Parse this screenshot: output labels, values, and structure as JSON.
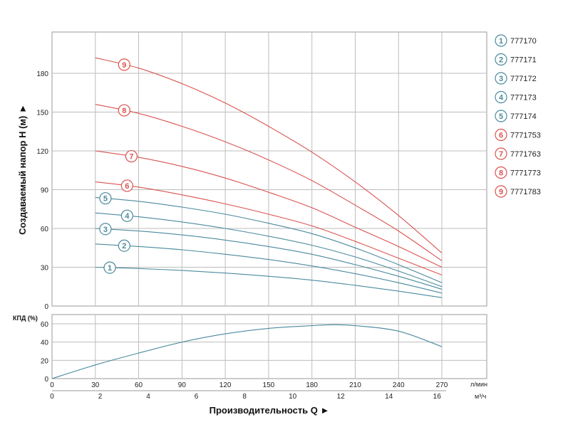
{
  "chart_data": [
    {
      "type": "line",
      "title": "",
      "ylabel": "Создаваемый напор H (м) ►",
      "xlabel": "",
      "xlim": [
        0,
        270
      ],
      "ylim": [
        0,
        200
      ],
      "x_ticks": [
        0,
        30,
        60,
        90,
        120,
        150,
        180,
        210,
        240,
        270
      ],
      "y_ticks": [
        0,
        30,
        60,
        90,
        120,
        150,
        180
      ],
      "grid": true,
      "legend": "right",
      "colors": {
        "blue": "#4a8a9e",
        "red": "#d9534f"
      },
      "series": [
        {
          "name": "777170",
          "marker": "1",
          "color": "#4a8a9e",
          "marker_x": 40,
          "x": [
            30,
            60,
            90,
            120,
            150,
            180,
            210,
            240,
            270
          ],
          "y": [
            30,
            29,
            27.5,
            25.5,
            23,
            20,
            16,
            11.5,
            6.5
          ]
        },
        {
          "name": "777171",
          "marker": "2",
          "color": "#4a8a9e",
          "marker_x": 50,
          "x": [
            30,
            60,
            90,
            120,
            150,
            180,
            210,
            240,
            270
          ],
          "y": [
            48,
            46,
            43.5,
            40,
            36,
            31,
            25,
            18,
            10
          ]
        },
        {
          "name": "777172",
          "marker": "3",
          "color": "#4a8a9e",
          "marker_x": 37,
          "x": [
            30,
            60,
            90,
            120,
            150,
            180,
            210,
            240,
            270
          ],
          "y": [
            60,
            58,
            55,
            51,
            46,
            40,
            32,
            23,
            13
          ]
        },
        {
          "name": "777173",
          "marker": "4",
          "color": "#4a8a9e",
          "marker_x": 52,
          "x": [
            30,
            60,
            90,
            120,
            150,
            180,
            210,
            240,
            270
          ],
          "y": [
            72,
            69,
            65,
            60,
            54,
            47,
            38,
            27,
            15
          ]
        },
        {
          "name": "777174",
          "marker": "5",
          "color": "#4a8a9e",
          "marker_x": 37,
          "x": [
            30,
            60,
            90,
            120,
            150,
            180,
            210,
            240,
            270
          ],
          "y": [
            84,
            81,
            76.5,
            71,
            64,
            56,
            45,
            32,
            18
          ]
        },
        {
          "name": "7771753",
          "marker": "6",
          "color": "#d9534f",
          "marker_x": 52,
          "x": [
            30,
            60,
            90,
            120,
            150,
            180,
            210,
            240,
            270
          ],
          "y": [
            96,
            92,
            86,
            79,
            71,
            62,
            50,
            37,
            24
          ]
        },
        {
          "name": "7771763",
          "marker": "7",
          "color": "#d9534f",
          "marker_x": 55,
          "x": [
            30,
            60,
            90,
            120,
            150,
            180,
            210,
            240,
            270
          ],
          "y": [
            120,
            115,
            108,
            99,
            88,
            76,
            61,
            46,
            30
          ]
        },
        {
          "name": "7771773",
          "marker": "8",
          "color": "#d9534f",
          "marker_x": 50,
          "x": [
            30,
            60,
            90,
            120,
            150,
            180,
            210,
            240,
            270
          ],
          "y": [
            156,
            149,
            139,
            127,
            113,
            97,
            78,
            58,
            35
          ]
        },
        {
          "name": "7771783",
          "marker": "9",
          "color": "#d9534f",
          "marker_x": 50,
          "x": [
            30,
            60,
            90,
            120,
            150,
            180,
            210,
            240,
            270
          ],
          "y": [
            192,
            184,
            172,
            157,
            139,
            119,
            96,
            70,
            41
          ]
        }
      ]
    },
    {
      "type": "line",
      "title": "",
      "ylabel": "КПД (%)",
      "xlabel": "Производительность Q ►",
      "xlim": [
        0,
        270
      ],
      "ylim": [
        0,
        70
      ],
      "x_ticks": [
        0,
        30,
        60,
        90,
        120,
        150,
        180,
        210,
        240,
        270
      ],
      "x_unit": "л/мин",
      "x2_ticks": [
        0,
        2,
        4,
        6,
        8,
        10,
        12,
        14,
        16
      ],
      "x2_unit": "м³/ч",
      "y_ticks": [
        0,
        20,
        40,
        60
      ],
      "grid": true,
      "series": [
        {
          "name": "",
          "color": "#4a8a9e",
          "x": [
            0,
            30,
            60,
            90,
            120,
            150,
            180,
            195,
            210,
            240,
            270
          ],
          "y": [
            0,
            15,
            28,
            40,
            49,
            55,
            58,
            59,
            58,
            52,
            35
          ]
        }
      ]
    }
  ]
}
